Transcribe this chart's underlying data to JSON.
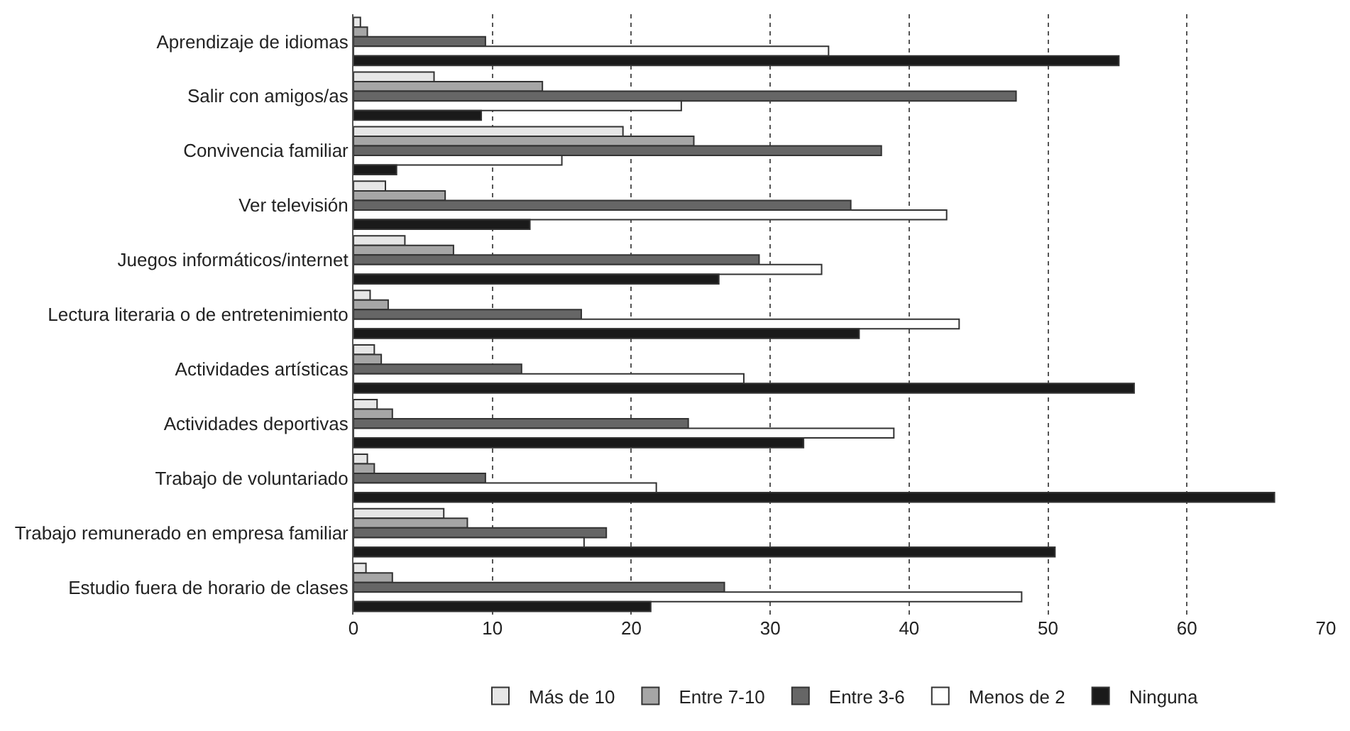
{
  "chart_data": {
    "type": "bar",
    "orientation": "horizontal",
    "categories": [
      "Aprendizaje de idiomas",
      "Salir con amigos/as",
      "Convivencia familiar",
      "Ver televisión",
      "Juegos informáticos/internet",
      "Lectura literaria o de entretenimiento",
      "Actividades artísticas",
      "Actividades deportivas",
      "Trabajo de voluntariado",
      "Trabajo remunerado en empresa familiar",
      "Estudio fuera de horario de clases"
    ],
    "series": [
      {
        "name": "Más de 10",
        "color": "#e6e6e6",
        "values": [
          0.5,
          5.8,
          19.4,
          2.3,
          3.7,
          1.2,
          1.5,
          1.7,
          1.0,
          6.5,
          0.9
        ]
      },
      {
        "name": "Entre 7-10",
        "color": "#a6a6a6",
        "values": [
          1.0,
          13.6,
          24.5,
          6.6,
          7.2,
          2.5,
          2.0,
          2.8,
          1.5,
          8.2,
          2.8
        ]
      },
      {
        "name": "Entre 3-6",
        "color": "#666666",
        "values": [
          9.5,
          47.7,
          38.0,
          35.8,
          29.2,
          16.4,
          12.1,
          24.1,
          9.5,
          18.2,
          26.7
        ]
      },
      {
        "name": "Menos de 2",
        "color": "#ffffff",
        "values": [
          34.2,
          23.6,
          15.0,
          42.7,
          33.7,
          43.6,
          28.1,
          38.9,
          21.8,
          16.6,
          48.1
        ]
      },
      {
        "name": "Ninguna",
        "color": "#1a1a1a",
        "values": [
          55.1,
          9.2,
          3.1,
          12.7,
          26.3,
          36.4,
          56.2,
          32.4,
          66.3,
          50.5,
          21.4
        ]
      }
    ],
    "xlim": [
      0,
      70
    ],
    "xticks": [
      0,
      10,
      20,
      30,
      40,
      50,
      60,
      70
    ],
    "grid": "x",
    "legend": "bottom"
  }
}
